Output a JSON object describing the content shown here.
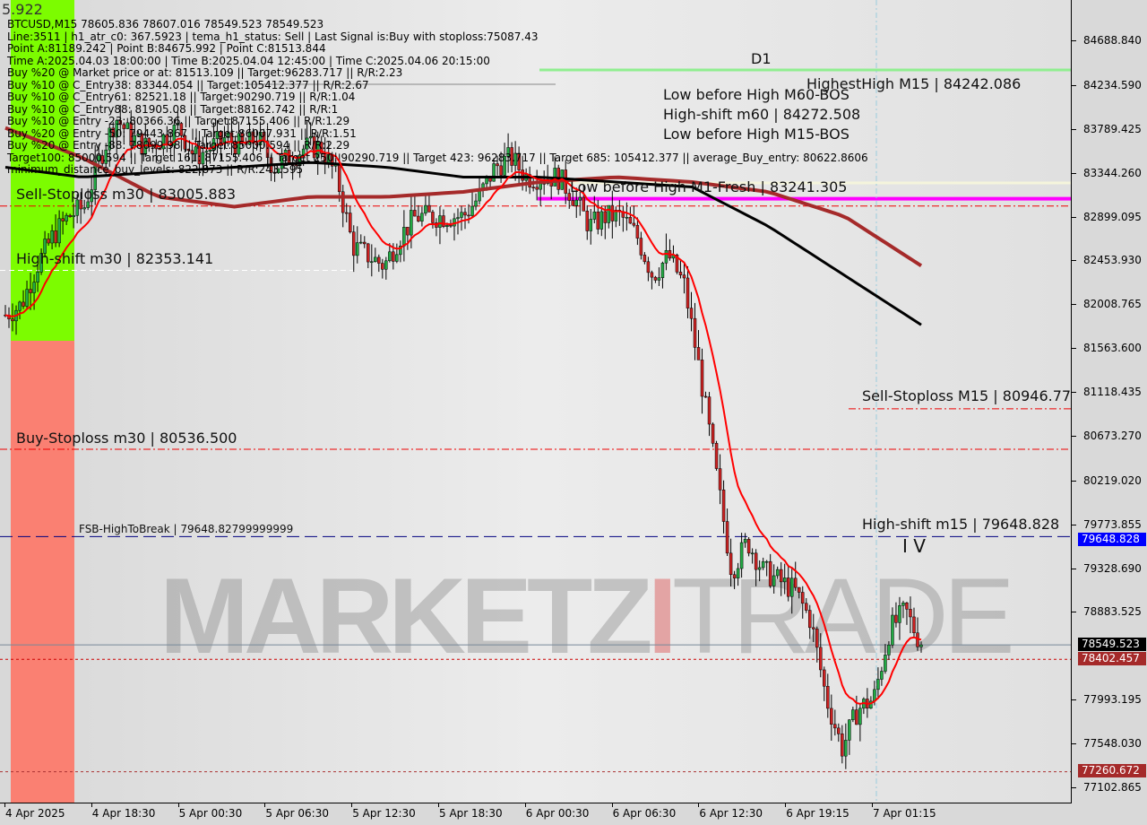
{
  "info_panel": {
    "corner_value": "5.922",
    "lines": [
      "BTCUSD,M15  78605.836 78607.016 78549.523 78549.523",
      "Line:3511 | h1_atr_c0: 367.5923 | tema_h1_status: Sell | Last Signal is:Buy with stoploss:75087.43",
      "Point A:81189.242 | Point B:84675.992 | Point C:81513.844",
      "Time A:2025.04.03 18:00:00 | Time B:2025.04.04 12:45:00 | Time C:2025.04.06 20:15:00",
      "Buy %20 @ Market price or at: 81513.109 || Target:96283.717 || R/R:2.23",
      "Buy %10 @ C_Entry38: 83344.054 || Target:105412.377 || R/R:2.67",
      "Buy %10 @ C_Entry61: 82521.18 || Target:90290.719 || R/R:1.04",
      "Buy %10 @ C_Entry88: 81905.08 || Target:88162.742 || R/R:1",
      "Buy %10 @ Entry -23: 80366.36 || Target:87155.406 || R/R:1.29",
      "Buy %20 @ Entry -50: 79443.867 || Target:86007.931 || R/R:1.51",
      "Buy %20 @ Entry -88: 78099.98 || Target:85000.594 || R/R:2.29",
      "Target100: 85000.594 || Target 161: 87155.406 || Target 250: 90290.719 || Target 423: 96283.717 || Target 685: 105412.377 || average_Buy_entry: 80622.8606",
      "minimum_distance_buy_levels: 822.873 || R/R:243.595"
    ]
  },
  "chart_labels": {
    "low_before_high_m60": "Low before High  M60-BOS",
    "highest_high_m15": "HighestHigh  M15 | 84242.086",
    "d1": "D1",
    "high_shift_m60": "High-shift m60 | 84272.508",
    "low_before_high_m15": "Low before High  M15-BOS",
    "low_before_high_m1": "Low before High  M1-Fresh | 83241.305",
    "sell_stoploss_m30": "Sell-Stoploss m30 | 83005.883",
    "high_shift_m30": "High-shift m30 | 82353.141",
    "buy_stoploss_m30": "Buy-Stoploss m30 | 80536.500",
    "fsb_high_to_break": "FSB-HighToBreak | 79648.82799999999",
    "sell_stoploss_m15": "Sell-Stoploss M15 | 80946.774",
    "high_shift_m15": "High-shift m15 | 79648.828",
    "wave_label": "I V"
  },
  "watermark": {
    "part1": "MARKETZ",
    "part2": "I",
    "part3": "TRADE"
  },
  "price_tags": {
    "high_shift": {
      "value": "79648.828",
      "color": "#0000ff"
    },
    "current": {
      "value": "78549.523",
      "color": "#000000"
    },
    "level_red_1": {
      "value": "78402.457",
      "color": "#a52a2a"
    },
    "level_red_2": {
      "value": "77260.672",
      "color": "#a52a2a"
    }
  },
  "chart_data": {
    "type": "candlestick",
    "symbol": "BTCUSD",
    "timeframe": "M15",
    "ylim": [
      77102.865,
      84688.84
    ],
    "y_ticks": [
      "84688.840",
      "84234.590",
      "83789.425",
      "83344.260",
      "82899.095",
      "82453.930",
      "82008.765",
      "81563.600",
      "81118.435",
      "80673.270",
      "80219.020",
      "79773.855",
      "79328.690",
      "78883.525",
      "77993.195",
      "77548.030",
      "77102.865"
    ],
    "x_ticks": [
      "4 Apr 2025",
      "4 Apr 18:30",
      "5 Apr 00:30",
      "5 Apr 06:30",
      "5 Apr 12:30",
      "5 Apr 18:30",
      "6 Apr 00:30",
      "6 Apr 06:30",
      "6 Apr 12:30",
      "6 Apr 19:15",
      "7 Apr 01:15"
    ],
    "close_approx": [
      81900,
      82000,
      82400,
      82700,
      82900,
      83000,
      83500,
      83900,
      83700,
      83600,
      83700,
      83800,
      83500,
      83600,
      83700,
      83600,
      83700,
      83400,
      83500,
      83600,
      83600,
      83300,
      82600,
      82500,
      82400,
      82700,
      82900,
      82900,
      82900,
      82900,
      83100,
      83400,
      83500,
      83300,
      83300,
      83300,
      83100,
      82800,
      82900,
      82900,
      82700,
      82300,
      82500,
      82200,
      81300,
      80300,
      79300,
      79600,
      79300,
      79200,
      79100,
      78800,
      78000,
      77500,
      77900,
      78000,
      78700,
      78900,
      78549.523
    ],
    "ma_black": [
      83400,
      83300,
      83350,
      83400,
      83450,
      83400,
      83300,
      83300,
      83250,
      83200,
      82800,
      82300,
      81800
    ],
    "ma_brown": [
      83800,
      83500,
      83100,
      83000,
      83100,
      83100,
      83150,
      83250,
      83300,
      83250,
      83150,
      82900,
      82400
    ],
    "levels": {
      "highest_high_m15": 84242.086,
      "low_before_high_m1": 83241.305,
      "magenta_level": 83080,
      "sell_stoploss_m30": 83005.883,
      "high_shift_m30": 82353.141,
      "sell_stoploss_m15": 80946.774,
      "buy_stoploss_m30": 80536.5,
      "high_shift_m15": 79648.828,
      "current_price": 78549.523,
      "red_level_1": 78402.457,
      "red_level_2": 77260.672
    },
    "colors": {
      "bull": "#22aa44",
      "bear": "#cc2222",
      "ma_fast": "#ff0000",
      "ma_black": "#000000",
      "ma_brown": "#a52a2a",
      "zone_buy": "#7cfc00",
      "zone_sell": "#fa8072",
      "magenta": "#ff00ff",
      "d1_line": "#90ee90"
    }
  }
}
